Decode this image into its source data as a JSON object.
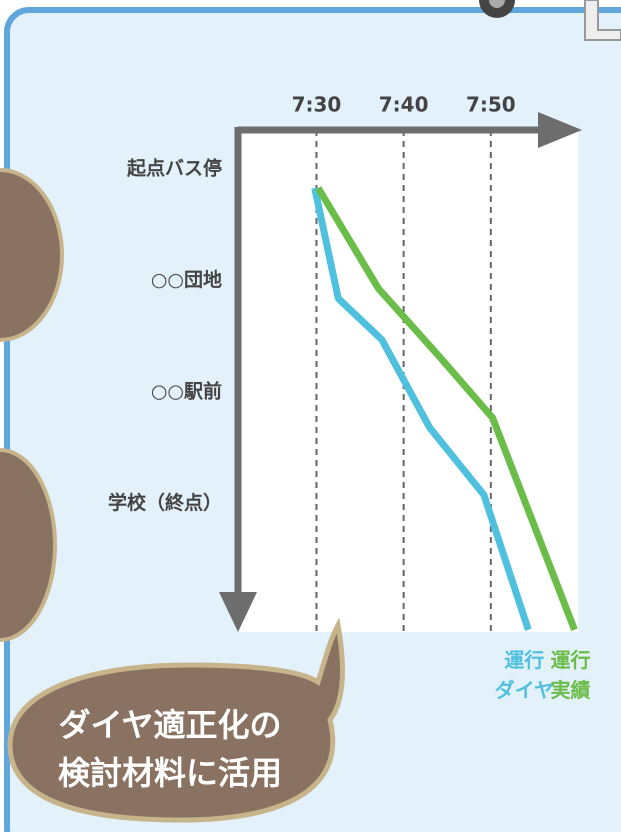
{
  "chart_data": {
    "type": "line",
    "xticks": [
      {
        "value": 30,
        "label": "7:30"
      },
      {
        "value": 40,
        "label": "7:40"
      },
      {
        "value": 50,
        "label": "7:50"
      }
    ],
    "xlim": [
      21,
      60
    ],
    "yticks": [
      {
        "value": 0,
        "label": "起点バス停"
      },
      {
        "value": 1,
        "label": "○○団地"
      },
      {
        "value": 2,
        "label": "○○駅前"
      },
      {
        "value": 3,
        "label": "学校（終点）"
      }
    ],
    "ylim": [
      -0.35,
      4.15
    ],
    "grid": true,
    "series": [
      {
        "name": "運行\nダイヤ",
        "color": "#4fc0de",
        "x": [
          29.8,
          32.5,
          37.5,
          43.0,
          49.2,
          54.3
        ],
        "values": [
          0.17,
          1.16,
          1.53,
          2.32,
          2.92,
          4.13
        ]
      },
      {
        "name": "運行\n実績",
        "color": "#6bbd4a",
        "x": [
          30.2,
          37.1,
          44.2,
          50.2,
          59.6
        ],
        "values": [
          0.17,
          1.07,
          1.69,
          2.23,
          4.13
        ]
      }
    ]
  },
  "bubble": {
    "lines": [
      "ダイヤ適正化の",
      "検討材料に活用"
    ]
  }
}
